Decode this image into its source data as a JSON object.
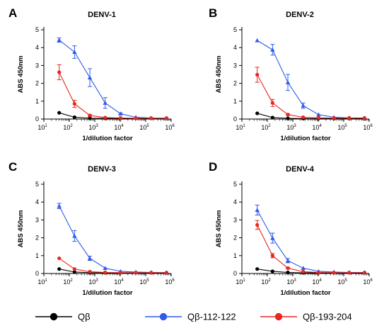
{
  "chart_data": [
    {
      "type": "line",
      "panel": "A",
      "title": "DENV-1",
      "xlabel": "1/dilution factor",
      "ylabel": "ABS 450nm",
      "xscale": "log",
      "xlim": [
        10,
        1000000
      ],
      "ylim": [
        0,
        5
      ],
      "x_ticks": [
        "10^1",
        "10^2",
        "10^3",
        "10^4",
        "10^5",
        "10^6"
      ],
      "y_ticks": [
        "0",
        "1",
        "2",
        "3",
        "4",
        "5"
      ],
      "x": [
        40,
        160,
        640,
        2560,
        10240,
        40960,
        163840,
        655360
      ],
      "series": [
        {
          "name": "Qβ",
          "color": "#000000",
          "marker": "circle",
          "values": [
            0.35,
            0.1,
            0.05,
            0.04,
            0.04,
            0.04,
            0.04,
            0.04
          ],
          "errors": [
            0,
            0,
            0,
            0,
            0,
            0,
            0,
            0
          ]
        },
        {
          "name": "Qβ-112-122",
          "color": "#2f5bea",
          "marker": "triangle",
          "values": [
            4.42,
            3.75,
            2.32,
            0.9,
            0.3,
            0.1,
            0.06,
            0.05
          ],
          "errors": [
            0.12,
            0.35,
            0.5,
            0.3,
            0.05,
            0,
            0,
            0
          ]
        },
        {
          "name": "Qβ-193-204",
          "color": "#e8281e",
          "marker": "circle",
          "values": [
            2.62,
            0.85,
            0.2,
            0.08,
            0.06,
            0.05,
            0.05,
            0.05
          ],
          "errors": [
            0.42,
            0.2,
            0.05,
            0,
            0,
            0,
            0,
            0
          ]
        }
      ]
    },
    {
      "type": "line",
      "panel": "B",
      "title": "DENV-2",
      "xlabel": "1/dilution factor",
      "ylabel": "ABS 450nm",
      "xscale": "log",
      "xlim": [
        10,
        1000000
      ],
      "ylim": [
        0,
        5
      ],
      "x_ticks": [
        "10^1",
        "10^2",
        "10^3",
        "10^4",
        "10^5",
        "10^6"
      ],
      "y_ticks": [
        "0",
        "1",
        "2",
        "3",
        "4",
        "5"
      ],
      "x": [
        40,
        160,
        640,
        2560,
        10240,
        40960,
        163840,
        655360
      ],
      "series": [
        {
          "name": "Qβ",
          "color": "#000000",
          "marker": "circle",
          "values": [
            0.32,
            0.08,
            0.04,
            0.03,
            0.03,
            0.03,
            0.03,
            0.03
          ],
          "errors": [
            0,
            0,
            0,
            0,
            0,
            0,
            0,
            0
          ]
        },
        {
          "name": "Qβ-112-122",
          "color": "#2f5bea",
          "marker": "triangle",
          "values": [
            4.4,
            3.88,
            2.05,
            0.75,
            0.25,
            0.1,
            0.07,
            0.06
          ],
          "errors": [
            0,
            0.3,
            0.45,
            0.15,
            0,
            0,
            0,
            0
          ]
        },
        {
          "name": "Qβ-193-204",
          "color": "#e8281e",
          "marker": "circle",
          "values": [
            2.48,
            0.9,
            0.25,
            0.1,
            0.07,
            0.06,
            0.06,
            0.06
          ],
          "errors": [
            0.42,
            0.2,
            0.05,
            0,
            0,
            0,
            0,
            0
          ]
        }
      ]
    },
    {
      "type": "line",
      "panel": "C",
      "title": "DENV-3",
      "xlabel": "1/dilution factor",
      "ylabel": "ABS 450nm",
      "xscale": "log",
      "xlim": [
        10,
        1000000
      ],
      "ylim": [
        0,
        5
      ],
      "x_ticks": [
        "10^1",
        "10^2",
        "10^3",
        "10^4",
        "10^5",
        "10^6"
      ],
      "y_ticks": [
        "0",
        "1",
        "2",
        "3",
        "4",
        "5"
      ],
      "x": [
        40,
        160,
        640,
        2560,
        10240,
        40960,
        163840,
        655360
      ],
      "series": [
        {
          "name": "Qβ",
          "color": "#000000",
          "marker": "circle",
          "values": [
            0.25,
            0.08,
            0.05,
            0.04,
            0.04,
            0.04,
            0.04,
            0.04
          ],
          "errors": [
            0,
            0,
            0,
            0,
            0,
            0,
            0,
            0
          ]
        },
        {
          "name": "Qβ-112-122",
          "color": "#2f5bea",
          "marker": "triangle",
          "values": [
            3.78,
            2.1,
            0.85,
            0.3,
            0.12,
            0.08,
            0.06,
            0.05
          ],
          "errors": [
            0.15,
            0.3,
            0.12,
            0,
            0,
            0,
            0,
            0
          ]
        },
        {
          "name": "Qβ-193-204",
          "color": "#e8281e",
          "marker": "circle",
          "values": [
            0.85,
            0.25,
            0.1,
            0.06,
            0.05,
            0.05,
            0.05,
            0.05
          ],
          "errors": [
            0,
            0,
            0,
            0,
            0,
            0,
            0,
            0
          ]
        }
      ]
    },
    {
      "type": "line",
      "panel": "D",
      "title": "DENV-4",
      "xlabel": "1/dilution factor",
      "ylabel": "ABS 450nm",
      "xscale": "log",
      "xlim": [
        10,
        1000000
      ],
      "ylim": [
        0,
        5
      ],
      "x_ticks": [
        "10^1",
        "10^2",
        "10^3",
        "10^4",
        "10^5",
        "10^6"
      ],
      "y_ticks": [
        "0",
        "1",
        "2",
        "3",
        "4",
        "5"
      ],
      "x": [
        40,
        160,
        640,
        2560,
        10240,
        40960,
        163840,
        655360
      ],
      "series": [
        {
          "name": "Qβ",
          "color": "#000000",
          "marker": "circle",
          "values": [
            0.25,
            0.12,
            0.06,
            0.04,
            0.04,
            0.04,
            0.04,
            0.04
          ],
          "errors": [
            0,
            0,
            0,
            0,
            0,
            0,
            0,
            0
          ]
        },
        {
          "name": "Qβ-112-122",
          "color": "#2f5bea",
          "marker": "triangle",
          "values": [
            3.55,
            1.98,
            0.72,
            0.3,
            0.12,
            0.08,
            0.06,
            0.06
          ],
          "errors": [
            0.28,
            0.28,
            0.12,
            0,
            0,
            0,
            0,
            0
          ]
        },
        {
          "name": "Qβ-193-204",
          "color": "#e8281e",
          "marker": "circle",
          "values": [
            2.72,
            1.0,
            0.3,
            0.1,
            0.06,
            0.05,
            0.05,
            0.05
          ],
          "errors": [
            0.25,
            0.12,
            0.05,
            0,
            0,
            0,
            0,
            0
          ]
        }
      ]
    }
  ],
  "legend": [
    {
      "label": "Qβ",
      "color": "#000000"
    },
    {
      "label": "Qβ-112-122",
      "color": "#2f5bea"
    },
    {
      "label": "Qβ-193-204",
      "color": "#e8281e"
    }
  ]
}
